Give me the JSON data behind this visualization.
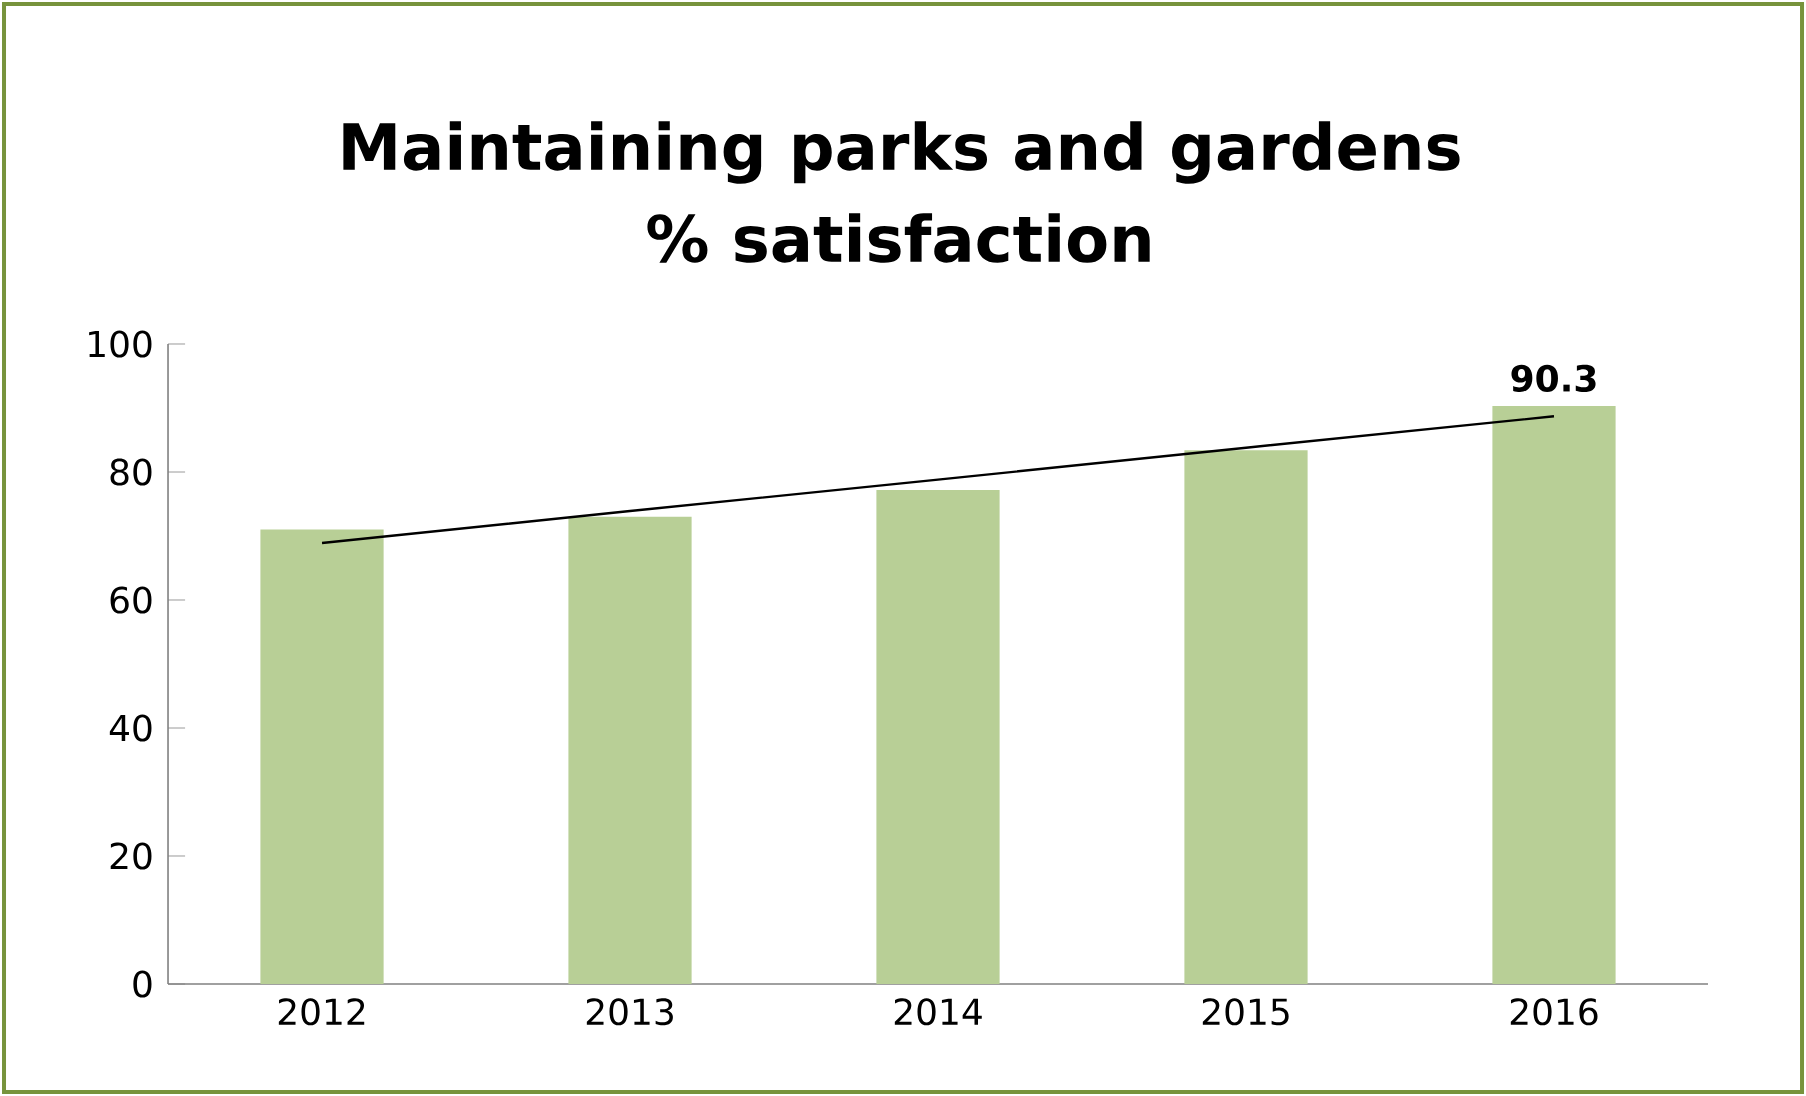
{
  "chart_data": {
    "type": "bar",
    "title": "Maintaining parks and gardens\n% satisfaction",
    "categories": [
      "2012",
      "2013",
      "2014",
      "2015",
      "2016"
    ],
    "series": [
      {
        "color": "#b8cf96",
        "values": [
          71,
          73,
          77.2,
          83.4,
          90.3
        ],
        "value_labels": [
          null,
          null,
          null,
          null,
          "90.3"
        ]
      },
      {
        "type": "line",
        "color": "#000000",
        "values": [
          68.9,
          73.9,
          78.8,
          83.8,
          88.7
        ]
      }
    ],
    "ylim": [
      0,
      100
    ],
    "yticks": [
      0,
      20,
      40,
      60,
      80,
      100
    ],
    "grid": false
  }
}
